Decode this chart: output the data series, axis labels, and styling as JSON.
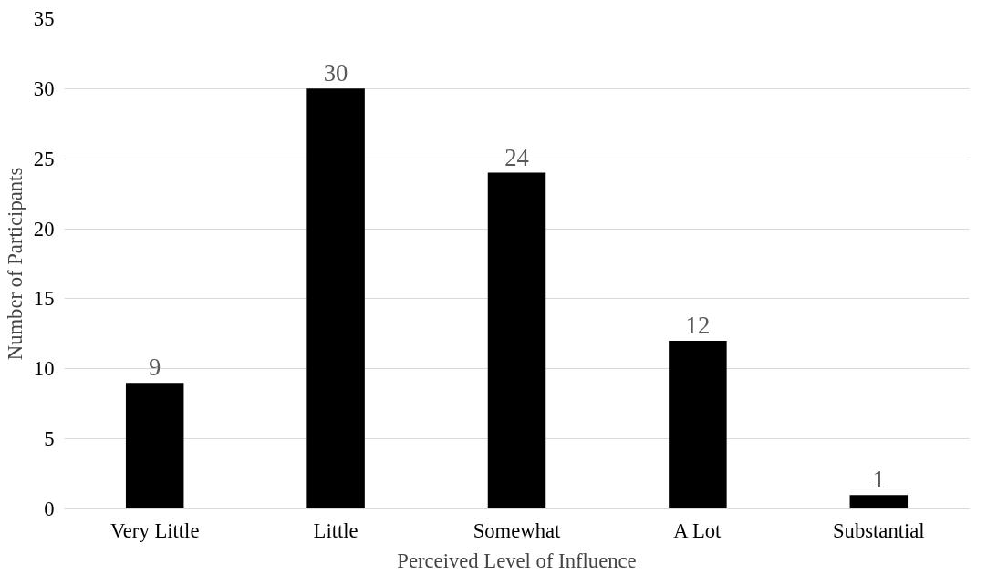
{
  "chart_data": {
    "type": "bar",
    "xlabel": "Perceived Level of Influence",
    "ylabel": "Number of Participants",
    "categories": [
      "Very Little",
      "Little",
      "Somewhat",
      "A Lot",
      "Substantial"
    ],
    "values": [
      9,
      30,
      24,
      12,
      1
    ],
    "color": "#000000",
    "ylim": [
      0,
      35
    ],
    "yticks": [
      0,
      5,
      10,
      15,
      20,
      25,
      30,
      35
    ],
    "grid": "y",
    "data_labels": true
  }
}
